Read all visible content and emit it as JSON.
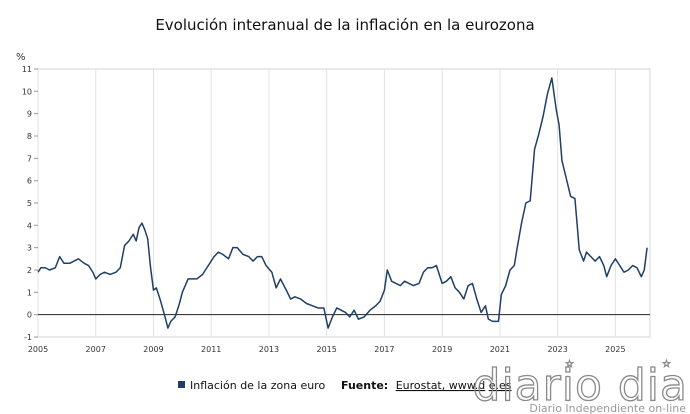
{
  "chart_data": {
    "type": "line",
    "title": "Evolución interanual de la inflación en la eurozona",
    "ylabel": "%",
    "xlabel": "",
    "ylim": [
      -1,
      11
    ],
    "xlim": [
      2005,
      2026.2
    ],
    "yticks": [
      "-1",
      "0",
      "1",
      "2",
      "3",
      "4",
      "5",
      "6",
      "7",
      "8",
      "9",
      "10",
      "11"
    ],
    "xticks": [
      "2005",
      "2007",
      "2009",
      "2011",
      "2013",
      "2015",
      "2017",
      "2019",
      "2021",
      "2023",
      "2025"
    ],
    "grid": "vertical",
    "legend_position": "bottom",
    "series": [
      {
        "name": "Inflación de la zona euro",
        "color": "#1f3f66",
        "points": [
          [
            2005.0,
            1.9
          ],
          [
            2005.1,
            2.1
          ],
          [
            2005.25,
            2.1
          ],
          [
            2005.4,
            2.0
          ],
          [
            2005.6,
            2.1
          ],
          [
            2005.75,
            2.6
          ],
          [
            2005.9,
            2.3
          ],
          [
            2006.1,
            2.3
          ],
          [
            2006.25,
            2.4
          ],
          [
            2006.4,
            2.5
          ],
          [
            2006.6,
            2.3
          ],
          [
            2006.75,
            2.2
          ],
          [
            2006.9,
            1.9
          ],
          [
            2007.0,
            1.6
          ],
          [
            2007.15,
            1.8
          ],
          [
            2007.3,
            1.9
          ],
          [
            2007.5,
            1.8
          ],
          [
            2007.7,
            1.9
          ],
          [
            2007.85,
            2.1
          ],
          [
            2008.0,
            3.1
          ],
          [
            2008.15,
            3.3
          ],
          [
            2008.3,
            3.6
          ],
          [
            2008.4,
            3.3
          ],
          [
            2008.5,
            3.9
          ],
          [
            2008.6,
            4.1
          ],
          [
            2008.7,
            3.8
          ],
          [
            2008.8,
            3.4
          ],
          [
            2008.9,
            2.1
          ],
          [
            2009.0,
            1.1
          ],
          [
            2009.1,
            1.2
          ],
          [
            2009.25,
            0.6
          ],
          [
            2009.4,
            -0.1
          ],
          [
            2009.5,
            -0.6
          ],
          [
            2009.6,
            -0.3
          ],
          [
            2009.75,
            -0.1
          ],
          [
            2009.9,
            0.5
          ],
          [
            2010.0,
            1.0
          ],
          [
            2010.2,
            1.6
          ],
          [
            2010.35,
            1.6
          ],
          [
            2010.5,
            1.6
          ],
          [
            2010.7,
            1.8
          ],
          [
            2010.9,
            2.2
          ],
          [
            2011.1,
            2.6
          ],
          [
            2011.25,
            2.8
          ],
          [
            2011.4,
            2.7
          ],
          [
            2011.6,
            2.5
          ],
          [
            2011.75,
            3.0
          ],
          [
            2011.9,
            3.0
          ],
          [
            2012.1,
            2.7
          ],
          [
            2012.3,
            2.6
          ],
          [
            2012.45,
            2.4
          ],
          [
            2012.6,
            2.6
          ],
          [
            2012.75,
            2.6
          ],
          [
            2012.9,
            2.2
          ],
          [
            2013.1,
            1.9
          ],
          [
            2013.25,
            1.2
          ],
          [
            2013.4,
            1.6
          ],
          [
            2013.6,
            1.1
          ],
          [
            2013.75,
            0.7
          ],
          [
            2013.9,
            0.8
          ],
          [
            2014.1,
            0.7
          ],
          [
            2014.3,
            0.5
          ],
          [
            2014.5,
            0.4
          ],
          [
            2014.7,
            0.3
          ],
          [
            2014.9,
            0.3
          ],
          [
            2015.05,
            -0.6
          ],
          [
            2015.2,
            -0.1
          ],
          [
            2015.35,
            0.3
          ],
          [
            2015.5,
            0.2
          ],
          [
            2015.65,
            0.1
          ],
          [
            2015.8,
            -0.1
          ],
          [
            2015.95,
            0.2
          ],
          [
            2016.1,
            -0.2
          ],
          [
            2016.3,
            -0.1
          ],
          [
            2016.5,
            0.2
          ],
          [
            2016.7,
            0.4
          ],
          [
            2016.85,
            0.6
          ],
          [
            2017.0,
            1.1
          ],
          [
            2017.1,
            2.0
          ],
          [
            2017.25,
            1.5
          ],
          [
            2017.4,
            1.4
          ],
          [
            2017.55,
            1.3
          ],
          [
            2017.7,
            1.5
          ],
          [
            2017.85,
            1.4
          ],
          [
            2018.0,
            1.3
          ],
          [
            2018.2,
            1.4
          ],
          [
            2018.35,
            1.9
          ],
          [
            2018.5,
            2.1
          ],
          [
            2018.65,
            2.1
          ],
          [
            2018.8,
            2.2
          ],
          [
            2019.0,
            1.4
          ],
          [
            2019.15,
            1.5
          ],
          [
            2019.3,
            1.7
          ],
          [
            2019.45,
            1.2
          ],
          [
            2019.6,
            1.0
          ],
          [
            2019.75,
            0.7
          ],
          [
            2019.9,
            1.3
          ],
          [
            2020.05,
            1.4
          ],
          [
            2020.2,
            0.7
          ],
          [
            2020.35,
            0.1
          ],
          [
            2020.5,
            0.4
          ],
          [
            2020.6,
            -0.2
          ],
          [
            2020.75,
            -0.3
          ],
          [
            2020.95,
            -0.3
          ],
          [
            2021.05,
            0.9
          ],
          [
            2021.2,
            1.3
          ],
          [
            2021.35,
            2.0
          ],
          [
            2021.5,
            2.2
          ],
          [
            2021.6,
            3.0
          ],
          [
            2021.75,
            4.1
          ],
          [
            2021.9,
            5.0
          ],
          [
            2022.05,
            5.1
          ],
          [
            2022.2,
            7.4
          ],
          [
            2022.35,
            8.1
          ],
          [
            2022.5,
            8.9
          ],
          [
            2022.65,
            9.9
          ],
          [
            2022.8,
            10.6
          ],
          [
            2022.95,
            9.2
          ],
          [
            2023.05,
            8.5
          ],
          [
            2023.15,
            6.9
          ],
          [
            2023.3,
            6.1
          ],
          [
            2023.45,
            5.3
          ],
          [
            2023.6,
            5.2
          ],
          [
            2023.75,
            2.9
          ],
          [
            2023.9,
            2.4
          ],
          [
            2024.0,
            2.8
          ],
          [
            2024.15,
            2.6
          ],
          [
            2024.3,
            2.4
          ],
          [
            2024.45,
            2.6
          ],
          [
            2024.6,
            2.2
          ],
          [
            2024.7,
            1.7
          ],
          [
            2024.85,
            2.2
          ],
          [
            2025.0,
            2.5
          ],
          [
            2025.15,
            2.2
          ],
          [
            2025.3,
            1.9
          ],
          [
            2025.45,
            2.0
          ],
          [
            2025.6,
            2.2
          ],
          [
            2025.75,
            2.1
          ],
          [
            2025.9,
            1.7
          ],
          [
            2026.0,
            2.0
          ],
          [
            2026.1,
            3.0
          ]
        ]
      }
    ]
  },
  "legend": {
    "label": "Inflación de la zona euro"
  },
  "source": {
    "label": "Fuente:",
    "text": "Eurostat, www.d",
    "text_suffix": "e.es"
  },
  "watermark": {
    "logo": "diario dia",
    "tagline": "Diario Independiente on-line"
  }
}
